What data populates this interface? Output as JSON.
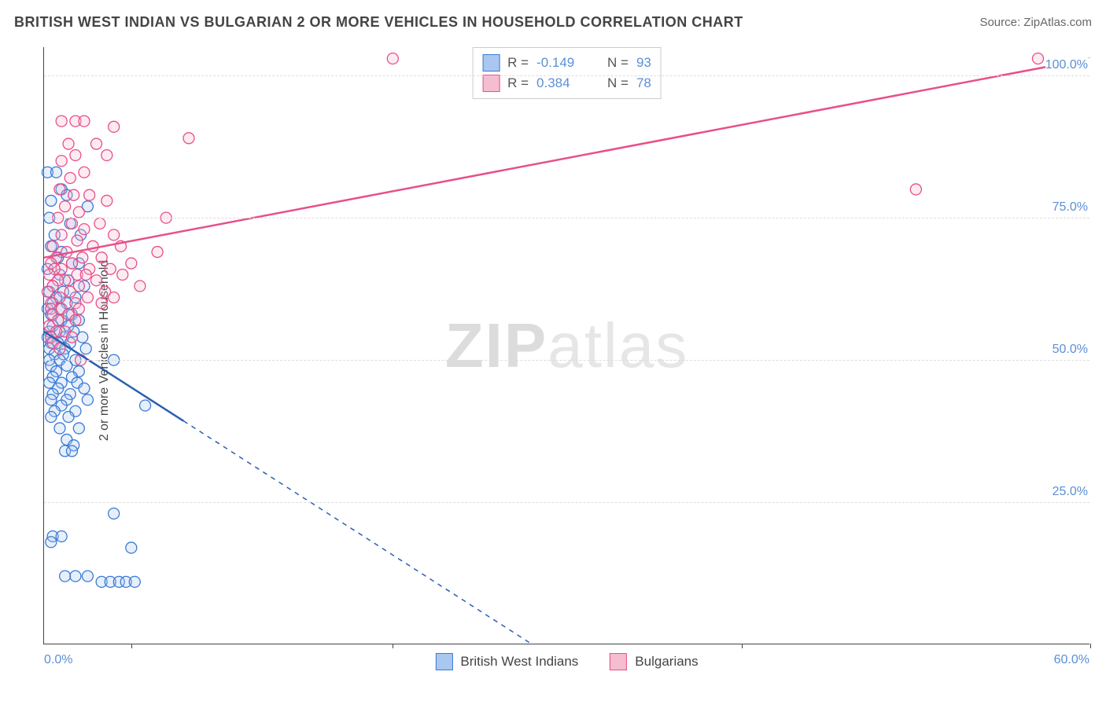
{
  "title": "BRITISH WEST INDIAN VS BULGARIAN 2 OR MORE VEHICLES IN HOUSEHOLD CORRELATION CHART",
  "source_label": "Source: ZipAtlas.com",
  "ylabel": "2 or more Vehicles in Household",
  "watermark": {
    "zip": "ZIP",
    "atlas": "atlas"
  },
  "chart": {
    "type": "scatter",
    "xlim": [
      0,
      60
    ],
    "ylim": [
      0,
      105
    ],
    "x_axis_label_left": "0.0%",
    "x_axis_label_right": "60.0%",
    "y_ticks": [
      25,
      50,
      75,
      100
    ],
    "y_tick_labels": [
      "25.0%",
      "50.0%",
      "75.0%",
      "100.0%"
    ],
    "x_ticks": [
      5,
      20,
      40,
      60
    ],
    "background_color": "#ffffff",
    "grid_color": "#dddddd",
    "axis_color": "#444444",
    "tick_label_color": "#5b8fd6",
    "marker_radius": 7,
    "marker_fill_opacity": 0.28,
    "marker_stroke_width": 1.3,
    "trend_line_width": 2.5,
    "trend_dash": "6,6"
  },
  "series": [
    {
      "name": "British West Indians",
      "color_stroke": "#3a7bd5",
      "color_fill": "#a9c7ef",
      "trend_color": "#2b5fb0",
      "R": "-0.149",
      "N": "93",
      "trend": {
        "x1": 0,
        "y1": 55,
        "x2": 28,
        "y2": 0,
        "solid_x_cut": 8
      },
      "points": [
        [
          0.2,
          83
        ],
        [
          0.7,
          83
        ],
        [
          1.0,
          80
        ],
        [
          1.3,
          79
        ],
        [
          0.4,
          78
        ],
        [
          2.5,
          77
        ],
        [
          0.3,
          75
        ],
        [
          1.5,
          74
        ],
        [
          0.6,
          72
        ],
        [
          2.1,
          72
        ],
        [
          0.4,
          70
        ],
        [
          1.0,
          69
        ],
        [
          0.8,
          68
        ],
        [
          1.6,
          67
        ],
        [
          2.0,
          67
        ],
        [
          0.2,
          66
        ],
        [
          0.9,
          65
        ],
        [
          1.4,
          64
        ],
        [
          0.5,
          63
        ],
        [
          2.3,
          63
        ],
        [
          0.3,
          62
        ],
        [
          1.1,
          62
        ],
        [
          0.7,
          61
        ],
        [
          1.8,
          61
        ],
        [
          0.5,
          60
        ],
        [
          1.3,
          60
        ],
        [
          0.2,
          59
        ],
        [
          0.9,
          59
        ],
        [
          1.6,
          58
        ],
        [
          0.4,
          58
        ],
        [
          1.0,
          57
        ],
        [
          2.0,
          57
        ],
        [
          0.5,
          56
        ],
        [
          1.4,
          56
        ],
        [
          0.3,
          55
        ],
        [
          0.9,
          55
        ],
        [
          1.7,
          55
        ],
        [
          0.2,
          54
        ],
        [
          1.1,
          54
        ],
        [
          2.2,
          54
        ],
        [
          0.4,
          53
        ],
        [
          0.8,
          53
        ],
        [
          1.5,
          53
        ],
        [
          0.3,
          52
        ],
        [
          1.2,
          52
        ],
        [
          2.4,
          52
        ],
        [
          0.6,
          51
        ],
        [
          1.1,
          51
        ],
        [
          0.3,
          50
        ],
        [
          0.9,
          50
        ],
        [
          1.8,
          50
        ],
        [
          4.0,
          50
        ],
        [
          0.4,
          49
        ],
        [
          1.3,
          49
        ],
        [
          0.7,
          48
        ],
        [
          2.0,
          48
        ],
        [
          0.5,
          47
        ],
        [
          1.6,
          47
        ],
        [
          0.3,
          46
        ],
        [
          1.0,
          46
        ],
        [
          1.9,
          46
        ],
        [
          0.8,
          45
        ],
        [
          2.3,
          45
        ],
        [
          0.5,
          44
        ],
        [
          1.5,
          44
        ],
        [
          0.4,
          43
        ],
        [
          1.3,
          43
        ],
        [
          2.5,
          43
        ],
        [
          1.0,
          42
        ],
        [
          5.8,
          42
        ],
        [
          0.6,
          41
        ],
        [
          1.8,
          41
        ],
        [
          0.4,
          40
        ],
        [
          1.4,
          40
        ],
        [
          0.9,
          38
        ],
        [
          2.0,
          38
        ],
        [
          1.3,
          36
        ],
        [
          1.7,
          35
        ],
        [
          1.2,
          34
        ],
        [
          1.6,
          34
        ],
        [
          4.0,
          23
        ],
        [
          0.5,
          19
        ],
        [
          1.0,
          19
        ],
        [
          0.4,
          18
        ],
        [
          5.0,
          17
        ],
        [
          1.2,
          12
        ],
        [
          1.8,
          12
        ],
        [
          2.5,
          12
        ],
        [
          3.3,
          11
        ],
        [
          3.8,
          11
        ],
        [
          4.3,
          11
        ],
        [
          4.7,
          11
        ],
        [
          5.2,
          11
        ]
      ]
    },
    {
      "name": "Bulgarians",
      "color_stroke": "#e84f8a",
      "color_fill": "#f6bccf",
      "trend_color": "#e84f8a",
      "R": "0.384",
      "N": "78",
      "trend": {
        "x1": 0,
        "y1": 68,
        "x2": 60,
        "y2": 103,
        "solid_x_cut": 60
      },
      "points": [
        [
          20,
          103
        ],
        [
          57,
          103
        ],
        [
          1.0,
          92
        ],
        [
          1.8,
          92
        ],
        [
          2.3,
          92
        ],
        [
          4.0,
          91
        ],
        [
          8.3,
          89
        ],
        [
          1.4,
          88
        ],
        [
          3.0,
          88
        ],
        [
          1.8,
          86
        ],
        [
          3.6,
          86
        ],
        [
          1.0,
          85
        ],
        [
          2.3,
          83
        ],
        [
          1.5,
          82
        ],
        [
          50,
          80
        ],
        [
          0.9,
          80
        ],
        [
          1.7,
          79
        ],
        [
          2.6,
          79
        ],
        [
          3.6,
          78
        ],
        [
          1.2,
          77
        ],
        [
          2.0,
          76
        ],
        [
          7.0,
          75
        ],
        [
          0.8,
          75
        ],
        [
          1.6,
          74
        ],
        [
          3.2,
          74
        ],
        [
          2.3,
          73
        ],
        [
          1.0,
          72
        ],
        [
          4.0,
          72
        ],
        [
          1.9,
          71
        ],
        [
          0.5,
          70
        ],
        [
          2.8,
          70
        ],
        [
          4.4,
          70
        ],
        [
          1.3,
          69
        ],
        [
          6.5,
          69
        ],
        [
          0.7,
          68
        ],
        [
          2.2,
          68
        ],
        [
          3.3,
          68
        ],
        [
          1.6,
          67
        ],
        [
          0.4,
          67
        ],
        [
          5.0,
          67
        ],
        [
          2.6,
          66
        ],
        [
          1.0,
          66
        ],
        [
          0.6,
          66
        ],
        [
          3.8,
          66
        ],
        [
          1.9,
          65
        ],
        [
          0.3,
          65
        ],
        [
          2.4,
          65
        ],
        [
          4.5,
          65
        ],
        [
          1.2,
          64
        ],
        [
          0.8,
          64
        ],
        [
          3.0,
          64
        ],
        [
          0.5,
          63
        ],
        [
          2.0,
          63
        ],
        [
          5.5,
          63
        ],
        [
          1.5,
          62
        ],
        [
          0.2,
          62
        ],
        [
          3.5,
          62
        ],
        [
          0.9,
          61
        ],
        [
          2.5,
          61
        ],
        [
          1.8,
          60
        ],
        [
          0.4,
          60
        ],
        [
          4.0,
          61
        ],
        [
          3.3,
          60
        ],
        [
          0.4,
          59
        ],
        [
          1.0,
          59
        ],
        [
          2.0,
          59
        ],
        [
          0.5,
          58
        ],
        [
          1.4,
          58
        ],
        [
          0.8,
          57
        ],
        [
          1.8,
          57
        ],
        [
          0.3,
          56
        ],
        [
          1.2,
          55
        ],
        [
          0.7,
          55
        ],
        [
          0.4,
          54
        ],
        [
          1.6,
          54
        ],
        [
          0.5,
          53
        ],
        [
          0.9,
          52
        ],
        [
          2.1,
          50
        ]
      ]
    }
  ],
  "legend_top_rows": [
    {
      "swatch_fill": "#a9c7ef",
      "swatch_stroke": "#3a7bd5",
      "R": "-0.149",
      "N": "93"
    },
    {
      "swatch_fill": "#f6bccf",
      "swatch_stroke": "#e84f8a",
      "R": "0.384",
      "N": "78"
    }
  ],
  "legend_bottom": [
    {
      "swatch_fill": "#a9c7ef",
      "swatch_stroke": "#3a7bd5",
      "label": "British West Indians"
    },
    {
      "swatch_fill": "#f6bccf",
      "swatch_stroke": "#e84f8a",
      "label": "Bulgarians"
    }
  ]
}
